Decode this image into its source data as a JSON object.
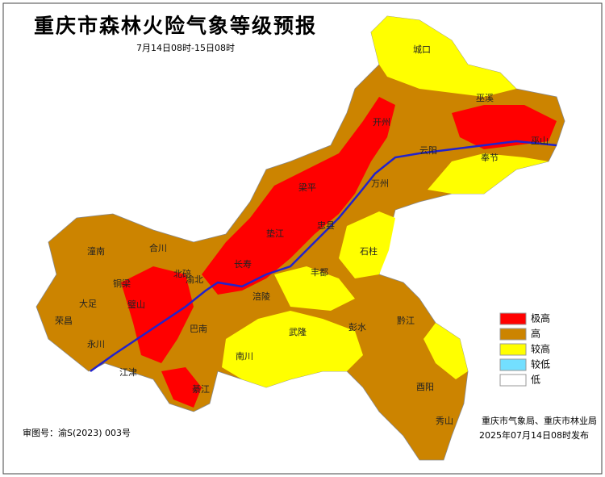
{
  "title": "重庆市森林火险气象等级预报",
  "subtitle": "7月14日08时-15日08时",
  "legend": [
    {
      "label": "极高",
      "color": "#ff0000"
    },
    {
      "label": "高",
      "color": "#cc8400"
    },
    {
      "label": "较高",
      "color": "#ffff00"
    },
    {
      "label": "较低",
      "color": "#73dfff"
    },
    {
      "label": "低",
      "color": "#ffffff"
    }
  ],
  "places": [
    "城口",
    "巫溪",
    "开州",
    "云阳",
    "奉节",
    "巫山",
    "梁平",
    "万州",
    "忠县",
    "垫江",
    "长寿",
    "石柱",
    "丰都",
    "涪陵",
    "武隆",
    "彭水",
    "黔江",
    "酉阳",
    "秀山",
    "南川",
    "綦江",
    "江津",
    "巴南",
    "璧山",
    "永川",
    "荣昌",
    "大足",
    "铜梁",
    "潼南",
    "合川",
    "北碚",
    "渝北"
  ],
  "footer": {
    "map_number": "审图号：渝S(2023) 003号",
    "issuer": "重庆市气象局、重庆市林业局",
    "issued": "2025年07月14日08时发布"
  }
}
